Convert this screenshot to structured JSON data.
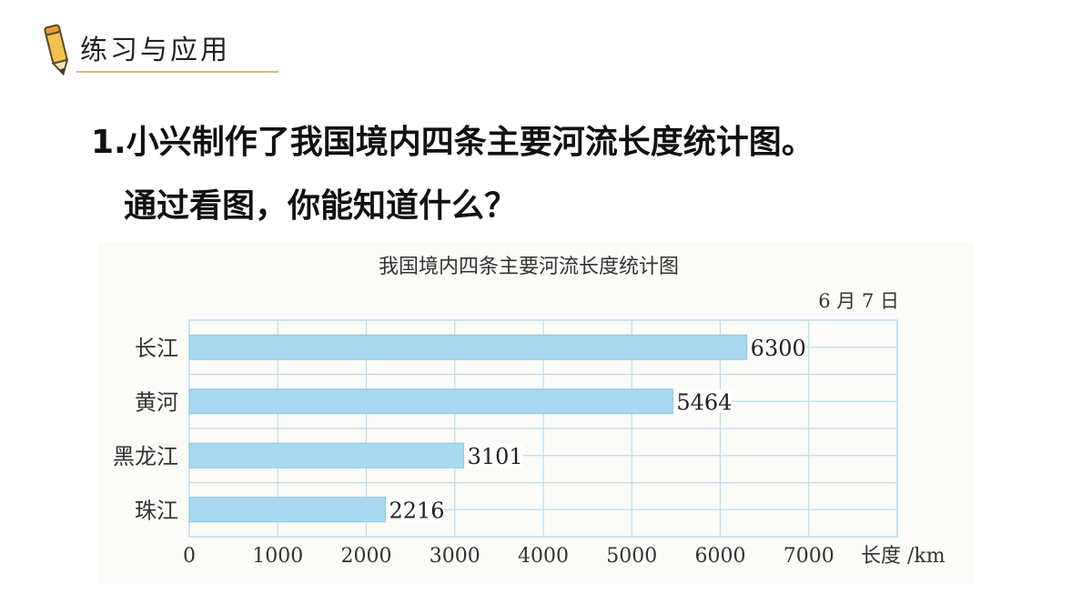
{
  "section": {
    "title": "练习与应用"
  },
  "question": {
    "line1": "1.小兴制作了我国境内四条主要河流长度统计图。",
    "line2": "通过看图，你能知道什么？"
  },
  "chart_data": {
    "type": "bar",
    "orientation": "horizontal",
    "title": "我国境内四条主要河流长度统计图",
    "date": "6 月 7 日",
    "categories": [
      "长江",
      "黄河",
      "黑龙江",
      "珠江"
    ],
    "values": [
      6300,
      5464,
      3101,
      2216
    ],
    "data_labels": [
      "6300",
      "5464",
      "3101",
      "2216"
    ],
    "x_ticks": [
      "0",
      "1000",
      "2000",
      "3000",
      "4000",
      "5000",
      "6000",
      "7000"
    ],
    "xlabel": "长度 /km",
    "xlim": [
      0,
      8000
    ],
    "grid": true,
    "bar_color": "#a9d9ef",
    "bar_edge_color": "#8cc8e4",
    "grid_color": "#b9dcee"
  }
}
